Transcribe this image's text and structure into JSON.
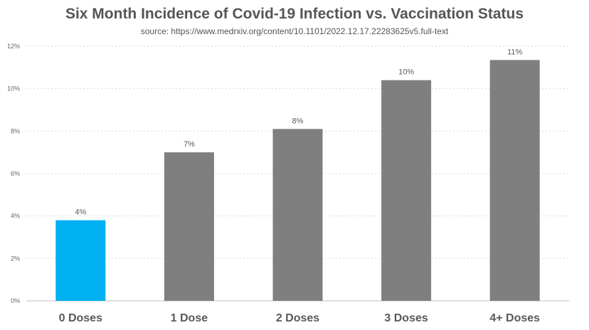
{
  "chart_data": {
    "type": "bar",
    "title": "Six Month Incidence of Covid-19 Infection vs. Vaccination Status",
    "subtitle": "source: https://www.medrxiv.org/content/10.1101/2022.12.17.22283625v5.full-text",
    "categories": [
      "0 Doses",
      "1 Dose",
      "2 Doses",
      "3 Doses",
      "4+ Doses"
    ],
    "values": [
      3.8,
      7.0,
      8.1,
      10.4,
      11.35
    ],
    "data_labels": [
      "4%",
      "7%",
      "8%",
      "10%",
      "11%"
    ],
    "bar_colors": [
      "#00b0f0",
      "#7f7f7f",
      "#7f7f7f",
      "#7f7f7f",
      "#7f7f7f"
    ],
    "xlabel": "",
    "ylabel": "",
    "ylim": [
      0,
      12
    ],
    "yticks": [
      0,
      2,
      4,
      6,
      8,
      10,
      12
    ],
    "ytick_labels": [
      "0%",
      "2%",
      "4%",
      "6%",
      "8%",
      "10%",
      "12%"
    ],
    "grid": true,
    "legend": "none"
  }
}
